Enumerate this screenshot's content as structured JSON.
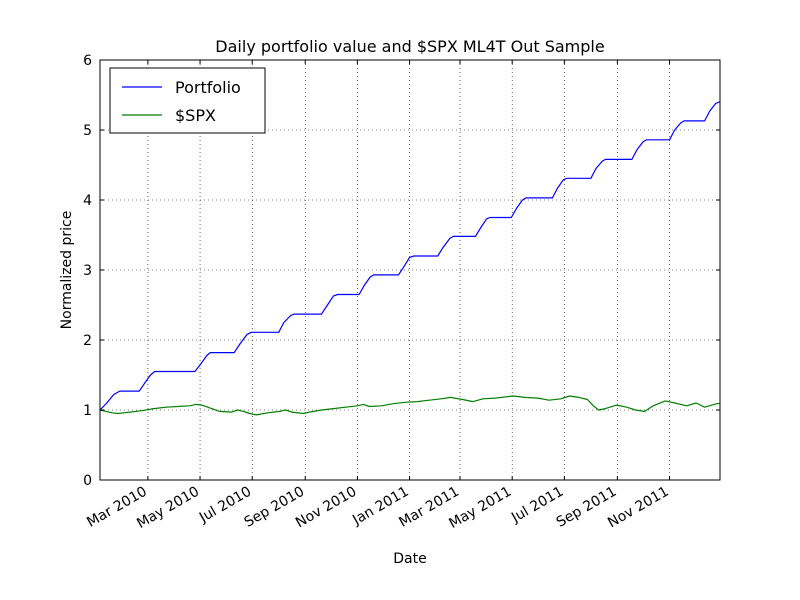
{
  "chart_data": {
    "type": "line",
    "title": "Daily portfolio value and $SPX ML4T Out Sample",
    "xlabel": "Date",
    "ylabel": "Normalized price",
    "ylim": [
      0,
      6
    ],
    "yticks": [
      "0",
      "1",
      "2",
      "3",
      "4",
      "5",
      "6"
    ],
    "xlim": [
      "2010-01-04",
      "2011-12-30"
    ],
    "xticks": [
      {
        "date": "2010-03-01",
        "label": "Mar 2010"
      },
      {
        "date": "2010-05-01",
        "label": "May 2010"
      },
      {
        "date": "2010-07-01",
        "label": "Jul 2010"
      },
      {
        "date": "2010-09-01",
        "label": "Sep 2010"
      },
      {
        "date": "2010-11-01",
        "label": "Nov 2010"
      },
      {
        "date": "2011-01-01",
        "label": "Jan 2011"
      },
      {
        "date": "2011-03-01",
        "label": "Mar 2011"
      },
      {
        "date": "2011-05-01",
        "label": "May 2011"
      },
      {
        "date": "2011-07-01",
        "label": "Jul 2011"
      },
      {
        "date": "2011-09-01",
        "label": "Sep 2011"
      },
      {
        "date": "2011-11-01",
        "label": "Nov 2011"
      }
    ],
    "grid": true,
    "legend_position": "top-left",
    "series": [
      {
        "name": "Portfolio",
        "color": "#0000ff",
        "points": [
          [
            "2010-01-04",
            1.0
          ],
          [
            "2010-01-12",
            1.1
          ],
          [
            "2010-01-20",
            1.22
          ],
          [
            "2010-01-27",
            1.27
          ],
          [
            "2010-02-19",
            1.27
          ],
          [
            "2010-02-25",
            1.38
          ],
          [
            "2010-03-04",
            1.5
          ],
          [
            "2010-03-09",
            1.55
          ],
          [
            "2010-04-25",
            1.55
          ],
          [
            "2010-05-02",
            1.66
          ],
          [
            "2010-05-09",
            1.78
          ],
          [
            "2010-05-13",
            1.82
          ],
          [
            "2010-06-10",
            1.82
          ],
          [
            "2010-06-17",
            1.95
          ],
          [
            "2010-06-25",
            2.08
          ],
          [
            "2010-06-30",
            2.11
          ],
          [
            "2010-08-01",
            2.11
          ],
          [
            "2010-08-07",
            2.25
          ],
          [
            "2010-08-15",
            2.35
          ],
          [
            "2010-08-19",
            2.37
          ],
          [
            "2010-09-20",
            2.37
          ],
          [
            "2010-09-27",
            2.5
          ],
          [
            "2010-10-04",
            2.63
          ],
          [
            "2010-10-09",
            2.65
          ],
          [
            "2010-11-03",
            2.65
          ],
          [
            "2010-11-09",
            2.78
          ],
          [
            "2010-11-16",
            2.9
          ],
          [
            "2010-11-20",
            2.93
          ],
          [
            "2010-12-19",
            2.93
          ],
          [
            "2010-12-26",
            3.06
          ],
          [
            "2011-01-01",
            3.18
          ],
          [
            "2011-01-06",
            3.2
          ],
          [
            "2011-02-03",
            3.2
          ],
          [
            "2011-02-09",
            3.32
          ],
          [
            "2011-02-17",
            3.45
          ],
          [
            "2011-02-21",
            3.48
          ],
          [
            "2011-03-19",
            3.48
          ],
          [
            "2011-03-25",
            3.6
          ],
          [
            "2011-04-01",
            3.73
          ],
          [
            "2011-04-05",
            3.75
          ],
          [
            "2011-04-30",
            3.75
          ],
          [
            "2011-05-06",
            3.88
          ],
          [
            "2011-05-13",
            4.0
          ],
          [
            "2011-05-17",
            4.03
          ],
          [
            "2011-06-17",
            4.03
          ],
          [
            "2011-06-23",
            4.17
          ],
          [
            "2011-06-30",
            4.29
          ],
          [
            "2011-07-04",
            4.31
          ],
          [
            "2011-08-01",
            4.31
          ],
          [
            "2011-08-07",
            4.45
          ],
          [
            "2011-08-14",
            4.55
          ],
          [
            "2011-08-18",
            4.58
          ],
          [
            "2011-09-18",
            4.58
          ],
          [
            "2011-09-24",
            4.72
          ],
          [
            "2011-10-01",
            4.83
          ],
          [
            "2011-10-05",
            4.86
          ],
          [
            "2011-11-01",
            4.86
          ],
          [
            "2011-11-07",
            5.0
          ],
          [
            "2011-11-14",
            5.1
          ],
          [
            "2011-11-18",
            5.13
          ],
          [
            "2011-12-12",
            5.13
          ],
          [
            "2011-12-18",
            5.27
          ],
          [
            "2011-12-25",
            5.38
          ],
          [
            "2011-12-29",
            5.4
          ],
          [
            "2012-01-19",
            5.4
          ]
        ]
      },
      {
        "name": "$SPX",
        "color": "#008000",
        "points": [
          [
            "2010-01-04",
            1.0
          ],
          [
            "2010-01-11",
            0.98
          ],
          [
            "2010-01-18",
            0.96
          ],
          [
            "2010-01-25",
            0.95
          ],
          [
            "2010-02-08",
            0.97
          ],
          [
            "2010-02-22",
            0.99
          ],
          [
            "2010-03-08",
            1.02
          ],
          [
            "2010-03-22",
            1.04
          ],
          [
            "2010-04-05",
            1.05
          ],
          [
            "2010-04-19",
            1.06
          ],
          [
            "2010-04-26",
            1.08
          ],
          [
            "2010-05-03",
            1.07
          ],
          [
            "2010-05-10",
            1.04
          ],
          [
            "2010-05-17",
            1.01
          ],
          [
            "2010-05-24",
            0.98
          ],
          [
            "2010-06-07",
            0.97
          ],
          [
            "2010-06-14",
            1.0
          ],
          [
            "2010-06-21",
            0.98
          ],
          [
            "2010-06-28",
            0.95
          ],
          [
            "2010-07-06",
            0.93
          ],
          [
            "2010-07-19",
            0.96
          ],
          [
            "2010-08-02",
            0.98
          ],
          [
            "2010-08-09",
            1.0
          ],
          [
            "2010-08-16",
            0.97
          ],
          [
            "2010-08-30",
            0.95
          ],
          [
            "2010-09-06",
            0.97
          ],
          [
            "2010-09-20",
            1.0
          ],
          [
            "2010-10-04",
            1.02
          ],
          [
            "2010-10-18",
            1.04
          ],
          [
            "2010-11-01",
            1.06
          ],
          [
            "2010-11-08",
            1.08
          ],
          [
            "2010-11-15",
            1.05
          ],
          [
            "2010-11-29",
            1.06
          ],
          [
            "2010-12-13",
            1.09
          ],
          [
            "2010-12-27",
            1.11
          ],
          [
            "2011-01-10",
            1.12
          ],
          [
            "2011-01-24",
            1.14
          ],
          [
            "2011-02-07",
            1.16
          ],
          [
            "2011-02-18",
            1.18
          ],
          [
            "2011-03-04",
            1.15
          ],
          [
            "2011-03-16",
            1.12
          ],
          [
            "2011-03-28",
            1.16
          ],
          [
            "2011-04-11",
            1.17
          ],
          [
            "2011-04-25",
            1.19
          ],
          [
            "2011-05-02",
            1.2
          ],
          [
            "2011-05-16",
            1.18
          ],
          [
            "2011-05-31",
            1.17
          ],
          [
            "2011-06-13",
            1.14
          ],
          [
            "2011-06-27",
            1.16
          ],
          [
            "2011-07-07",
            1.2
          ],
          [
            "2011-07-18",
            1.18
          ],
          [
            "2011-07-28",
            1.15
          ],
          [
            "2011-08-04",
            1.06
          ],
          [
            "2011-08-10",
            1.0
          ],
          [
            "2011-08-18",
            1.02
          ],
          [
            "2011-08-31",
            1.07
          ],
          [
            "2011-09-12",
            1.04
          ],
          [
            "2011-09-22",
            1.0
          ],
          [
            "2011-10-03",
            0.98
          ],
          [
            "2011-10-13",
            1.06
          ],
          [
            "2011-10-27",
            1.13
          ],
          [
            "2011-11-07",
            1.1
          ],
          [
            "2011-11-21",
            1.06
          ],
          [
            "2011-12-02",
            1.1
          ],
          [
            "2011-12-12",
            1.04
          ],
          [
            "2011-12-26",
            1.09
          ],
          [
            "2012-01-05",
            1.1
          ],
          [
            "2012-01-12",
            1.11
          ],
          [
            "2012-01-19",
            1.08
          ]
        ]
      }
    ]
  }
}
